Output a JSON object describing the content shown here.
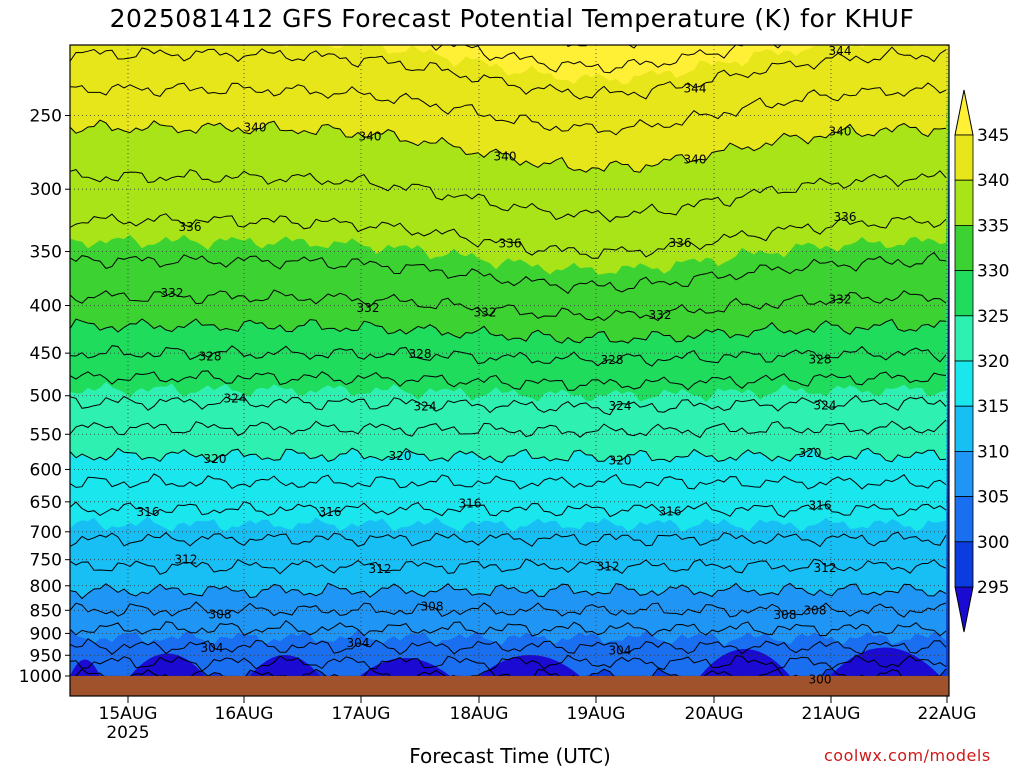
{
  "title": "2025081412 GFS Forecast Potential Temperature (K) for KHUF",
  "xlabel": "Forecast Time (UTC)",
  "credit": "coolwx.com/models",
  "chart_data": {
    "type": "heatmap",
    "variable": "Potential Temperature (K)",
    "x_ticks": [
      "15AUG",
      "16AUG",
      "17AUG",
      "18AUG",
      "19AUG",
      "20AUG",
      "21AUG",
      "22AUG"
    ],
    "x_year_label": "2025",
    "y_ticks": [
      250,
      300,
      350,
      400,
      450,
      500,
      550,
      600,
      650,
      700,
      750,
      800,
      850,
      900,
      950,
      1000
    ],
    "y_scale": "log pressure (inverted)",
    "ylim": [
      1000,
      210
    ],
    "grid": true,
    "colorbar": {
      "levels": [
        295,
        300,
        305,
        310,
        315,
        320,
        325,
        330,
        335,
        340,
        345
      ],
      "colors": [
        "#1a0ad2",
        "#0b3ce0",
        "#1a6ef0",
        "#1f96f5",
        "#17bff5",
        "#1ae6ee",
        "#2ef0b0",
        "#1fdc5c",
        "#3cd232",
        "#a8e418",
        "#e6e61a",
        "#fff036"
      ]
    },
    "contour_labels": [
      340,
      344,
      344,
      340,
      340,
      340,
      340,
      336,
      336,
      336,
      336,
      332,
      332,
      332,
      332,
      332,
      328,
      328,
      328,
      328,
      324,
      324,
      324,
      324,
      320,
      320,
      320,
      320,
      316,
      316,
      316,
      316,
      316,
      312,
      312,
      312,
      312,
      308,
      308,
      308,
      308,
      304,
      304,
      304,
      300
    ],
    "contour_profile": {
      "pressure": [
        1000,
        950,
        900,
        850,
        800,
        750,
        700,
        650,
        600,
        550,
        500,
        450,
        400,
        350,
        300,
        250,
        210
      ],
      "theta": [
        300,
        303,
        305.5,
        308,
        310.5,
        312.5,
        314.5,
        316.5,
        319,
        321.5,
        324.5,
        328,
        331.5,
        334.5,
        337.5,
        340.5,
        344.5
      ]
    },
    "surface_label": "ground"
  }
}
